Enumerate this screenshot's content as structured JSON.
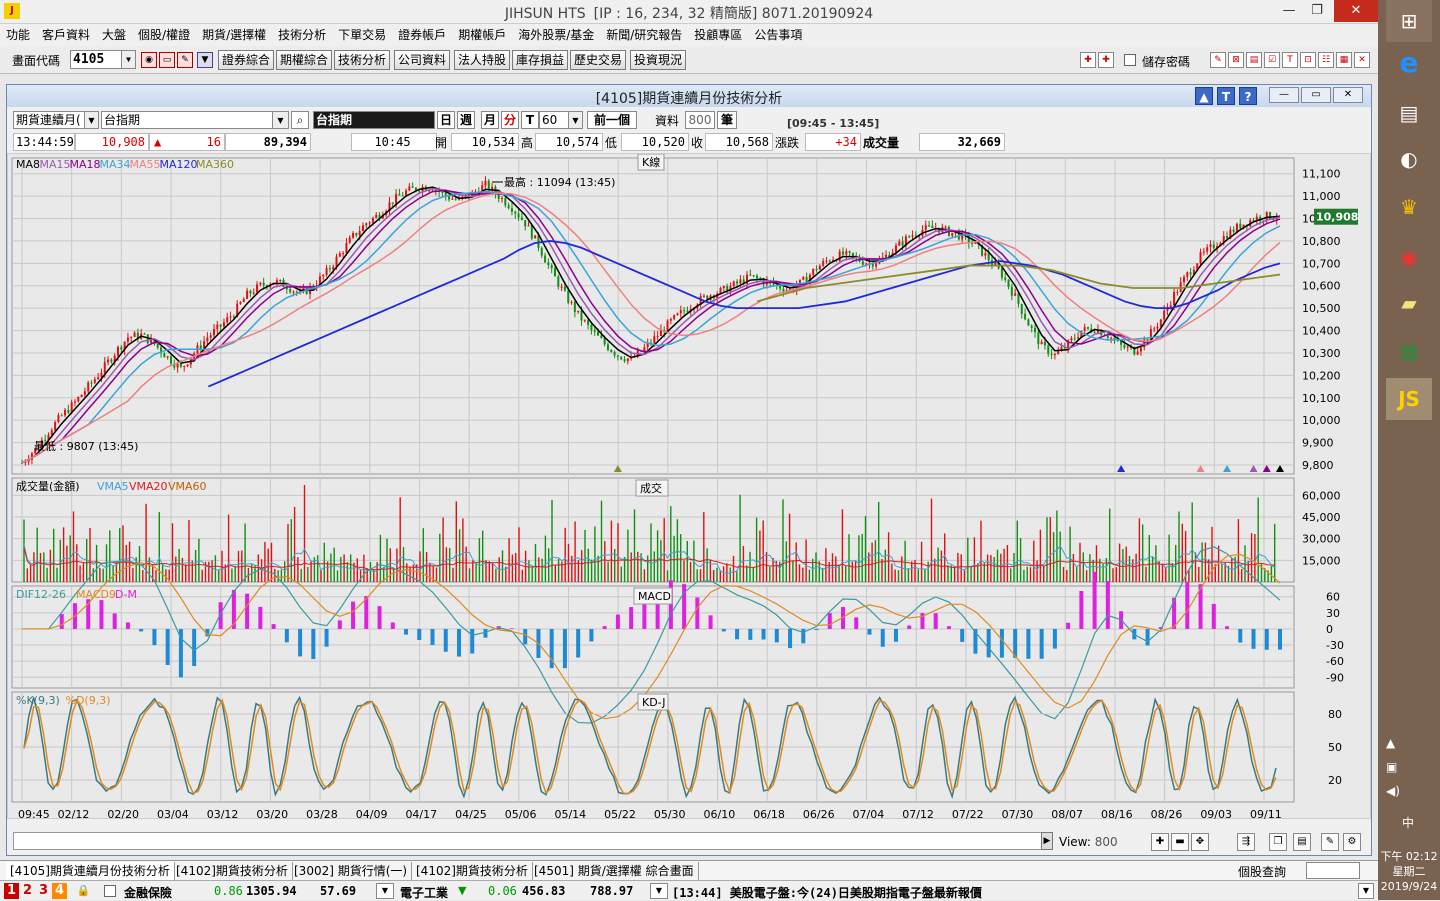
{
  "window": {
    "app_name": "JIHSUN HTS",
    "conn_info": "[IP : 16, 234, 32 精簡版] 8071.20190924"
  },
  "menu": [
    "功能",
    "客戶資料",
    "大盤",
    "個股/權證",
    "期貨/選擇權",
    "技術分析",
    "下單交易",
    "證券帳戶",
    "期權帳戶",
    "海外股票/基金",
    "新聞/研究報告",
    "投顧專區",
    "公告事項"
  ],
  "toolbar": {
    "code_label": "畫面代碼",
    "code_value": "4105",
    "buttons": [
      "證券綜合",
      "期權綜合",
      "技術分析",
      "公司資料",
      "法人持股",
      "庫存損益",
      "歷史交易",
      "投資現況"
    ],
    "save_password": "儲存密碼"
  },
  "subwindow": {
    "title": "[4105]期貨連續月份技術分析",
    "product_type": "期貨連續月(",
    "product_name": "台指期",
    "product_label": "台指期",
    "periods": [
      "日",
      "週",
      "月",
      "分",
      "T"
    ],
    "active_period": "分",
    "interval": "60",
    "prev_button": "前一個",
    "data_label": "資料",
    "data_count": "800",
    "data_unit": "筆",
    "time_range": "[09:45 - 13:45]"
  },
  "quote": {
    "time": "13:44:59",
    "price": "10,908",
    "change": "16",
    "volume_total": "89,394",
    "bar_time": "10:45",
    "open_label": "開",
    "open": "10,534",
    "high_label": "高",
    "high": "10,574",
    "low_label": "低",
    "low": "10,520",
    "close_label": "收",
    "close": "10,568",
    "chg_label": "漲跌",
    "chg": "+34",
    "vol_label": "成交量",
    "vol": "32,669"
  },
  "chart_data": [
    {
      "type": "candlestick",
      "title": "K線",
      "legend": [
        "MA8",
        "MA15",
        "MA18",
        "MA34",
        "MA55",
        "MA120",
        "MA360"
      ],
      "legend_colors": [
        "#000000",
        "#9b59b6",
        "#8b008b",
        "#3ba3d6",
        "#f08080",
        "#1f2ad6",
        "#8b8b2a"
      ],
      "annotations": [
        "最高 : 11094 (13:45)",
        "最低 : 9807 (13:45)"
      ],
      "current_price": "10,908",
      "y_ticks": [
        "11,100",
        "11,000",
        "10,900",
        "10,800",
        "10,700",
        "10,600",
        "10,500",
        "10,400",
        "10,300",
        "10,200",
        "10,100",
        "10,000",
        "9,900",
        "9,800"
      ],
      "ylim": [
        9760,
        11170
      ],
      "close_path": [
        9810,
        9870,
        9950,
        10020,
        10080,
        10150,
        10220,
        10300,
        10370,
        10380,
        10340,
        10280,
        10230,
        10300,
        10370,
        10420,
        10480,
        10560,
        10600,
        10620,
        10600,
        10560,
        10600,
        10660,
        10740,
        10820,
        10880,
        10920,
        10980,
        11020,
        11040,
        11040,
        11000,
        10980,
        11010,
        11050,
        11000,
        10950,
        10880,
        10780,
        10660,
        10560,
        10470,
        10400,
        10340,
        10290,
        10270,
        10320,
        10380,
        10440,
        10490,
        10530,
        10560,
        10580,
        10610,
        10640,
        10620,
        10600,
        10580,
        10620,
        10680,
        10720,
        10740,
        10720,
        10700,
        10720,
        10770,
        10820,
        10850,
        10860,
        10840,
        10820,
        10780,
        10720,
        10650,
        10550,
        10430,
        10330,
        10290,
        10340,
        10400,
        10410,
        10380,
        10330,
        10310,
        10370,
        10450,
        10560,
        10650,
        10730,
        10780,
        10830,
        10870,
        10900,
        10910,
        10910
      ],
      "ma120_path": [
        null,
        null,
        null,
        null,
        null,
        null,
        null,
        null,
        null,
        null,
        null,
        null,
        10150,
        10180,
        10210,
        10240,
        10270,
        10300,
        10330,
        10360,
        10390,
        10420,
        10450,
        10480,
        10510,
        10540,
        10570,
        10600,
        10630,
        10660,
        10690,
        10720,
        10760,
        10790,
        10800,
        10790,
        10770,
        10740,
        10710,
        10680,
        10650,
        10620,
        10590,
        10560,
        10530,
        10510,
        10500,
        10500,
        10500,
        10500,
        10500,
        10510,
        10520,
        10530,
        10550,
        10570,
        10590,
        10610,
        10630,
        10650,
        10670,
        10690,
        10700,
        10710,
        10700,
        10690,
        10670,
        10650,
        10620,
        10590,
        10560,
        10530,
        10510,
        10500,
        10500,
        10520,
        10550,
        10580,
        10620,
        10650,
        10680,
        10700
      ],
      "ma360_path": [
        null,
        null,
        null,
        null,
        null,
        null,
        null,
        null,
        null,
        null,
        null,
        null,
        null,
        null,
        null,
        null,
        null,
        null,
        null,
        null,
        null,
        null,
        null,
        null,
        null,
        null,
        null,
        null,
        null,
        null,
        null,
        null,
        null,
        null,
        null,
        null,
        null,
        null,
        null,
        null,
        null,
        null,
        null,
        null,
        null,
        10530,
        10550,
        10570,
        10590,
        10600,
        10610,
        10620,
        10630,
        10640,
        10650,
        10660,
        10670,
        10680,
        10690,
        10690,
        10690,
        10690,
        10680,
        10670,
        10650,
        10630,
        10610,
        10600,
        10590,
        10590,
        10590,
        10590,
        10600,
        10610,
        10620,
        10630,
        10640,
        10650
      ],
      "signals": [
        {
          "x_idx": 45,
          "color": "#8b8b2a"
        },
        {
          "x_idx": 83,
          "color": "#1f2ad6"
        },
        {
          "x_idx": 89,
          "color": "#f08080"
        },
        {
          "x_idx": 91,
          "color": "#3ba3d6"
        },
        {
          "x_idx": 93,
          "color": "#9b59b6"
        },
        {
          "x_idx": 94,
          "color": "#8b008b"
        },
        {
          "x_idx": 95,
          "color": "#000000"
        }
      ]
    },
    {
      "type": "bar",
      "title": "成交",
      "legend": [
        "成交量(金額)",
        "VMA5",
        "VMA20",
        "VMA60"
      ],
      "legend_colors": [
        "#000000",
        "#3ba3d6",
        "#d62020",
        "#c06000"
      ],
      "y_ticks": [
        "60,000",
        "45,000",
        "30,000",
        "15,000"
      ],
      "ylim": [
        0,
        72000
      ]
    },
    {
      "type": "line",
      "title": "MACD",
      "legend": [
        "DIF12-26",
        "MACD9",
        "D-M"
      ],
      "legend_colors": [
        "#3a9aa0",
        "#e08a20",
        "#e020e0"
      ],
      "y_ticks": [
        "60",
        "30",
        "0",
        "-30",
        "-60",
        "-90"
      ],
      "ylim": [
        -110,
        80
      ]
    },
    {
      "type": "line",
      "title": "KD-J",
      "legend": [
        "%K(9,3)",
        "%D(9,3)"
      ],
      "legend_colors": [
        "#3a7a80",
        "#e08a20"
      ],
      "y_ticks": [
        "80",
        "50",
        "20"
      ],
      "ylim": [
        0,
        100
      ]
    }
  ],
  "x_axis": [
    "09:45",
    "02/12",
    "02/20",
    "03/04",
    "03/12",
    "03/20",
    "03/28",
    "04/09",
    "04/17",
    "04/25",
    "05/06",
    "05/14",
    "05/22",
    "05/30",
    "06/10",
    "06/18",
    "06/26",
    "07/04",
    "07/12",
    "07/22",
    "07/30",
    "08/07",
    "08/16",
    "08/26",
    "09/03",
    "09/11"
  ],
  "nav": {
    "view_label": "View:",
    "view_value": "800"
  },
  "tabs": [
    "[4105]期貨連續月份技術分析",
    "[4102]期貨技術分析",
    "[3002] 期貨行情(一)",
    "[4102]期貨技術分析",
    "[4501] 期貨/選擇權 綜合畫面"
  ],
  "query_label": "個股查詢",
  "status": {
    "nums": [
      "1",
      "2",
      "3",
      "4"
    ],
    "idx1_name": "金融保險",
    "idx1_chg": "0.86",
    "idx1_val": "1305.94",
    "idx1_amt": "57.69",
    "idx2_name": "電子工業",
    "idx2_chg": "0.06",
    "idx2_val": "456.83",
    "idx2_amt": "788.97",
    "news": "[13:44] 美股電子盤:今(24)日美股期指電子盤最新報價"
  },
  "taskbar": {
    "time": "下午 02:12",
    "weekday": "星期二",
    "date": "2019/9/24",
    "ime": "中"
  }
}
